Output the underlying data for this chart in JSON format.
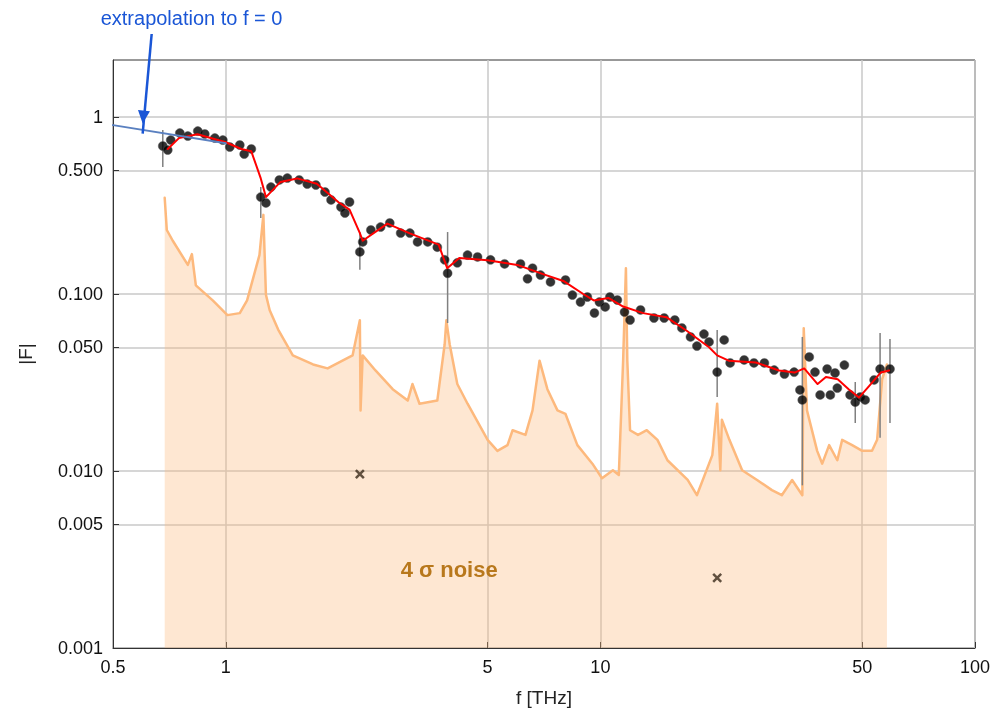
{
  "chart_data": {
    "type": "scatter",
    "xlabel": "f [THz]",
    "ylabel": "|F|",
    "log": "xy",
    "grid": true,
    "xlim": [
      0.5,
      100
    ],
    "xticks": [
      0.5,
      1,
      5,
      10,
      50,
      100
    ],
    "ylim": [
      0.001,
      2.1
    ],
    "yticks": [
      {
        "value": 0.001,
        "label": "0.001"
      },
      {
        "value": 0.005,
        "label": "0.005"
      },
      {
        "value": 0.01,
        "label": "0.010"
      },
      {
        "value": 0.05,
        "label": "0.050"
      },
      {
        "value": 0.1,
        "label": "0.100"
      },
      {
        "value": 0.5,
        "label": "0.500"
      },
      1
    ],
    "annotations": [
      {
        "text": "extrapolation to f = 0",
        "x": 0.6,
        "y": 0.86
      },
      "4 σ noise"
    ],
    "series": [
      {
        "type": "area",
        "color": "#fdb97d",
        "x": [
          0.687,
          0.696,
          0.722,
          0.792,
          0.812,
          0.832,
          0.923,
          1.01,
          1.09,
          1.14,
          1.23,
          1.26,
          1.28,
          1.31,
          1.38,
          1.51,
          1.71,
          1.87,
          2.18,
          2.28,
          2.29,
          2.32,
          2.51,
          2.79,
          3.06,
          3.15,
          3.29,
          3.67,
          3.84,
          3.88,
          3.96,
          4.15,
          4.42,
          5.0,
          5.31,
          5.65,
          5.83,
          6.31,
          6.59,
          6.88,
          7.22,
          7.68,
          8.07,
          8.68,
          9.52,
          10.1,
          10.8,
          11.2,
          11.5,
          11.7,
          11.8,
          12.0,
          12.6,
          13.3,
          14.2,
          15.1,
          17.1,
          18.1,
          19.9,
          20.5,
          20.9,
          21.1,
          22.1,
          23.9,
          26.2,
          28.7,
          30.5,
          32.5,
          34.6,
          34.9,
          35.6,
          37.9,
          39.1,
          40.8,
          42.9,
          44.2,
          47.0,
          50.0,
          53.1,
          54.8,
          56.5,
          58.2
        ],
        "values": [
          0.35,
          0.23,
          0.2,
          0.146,
          0.168,
          0.112,
          0.092,
          0.076,
          0.078,
          0.092,
          0.166,
          0.28,
          0.099,
          0.081,
          0.063,
          0.045,
          0.04,
          0.038,
          0.045,
          0.071,
          0.022,
          0.045,
          0.037,
          0.029,
          0.025,
          0.031,
          0.024,
          0.025,
          0.052,
          0.071,
          0.052,
          0.031,
          0.024,
          0.015,
          0.013,
          0.014,
          0.017,
          0.016,
          0.022,
          0.042,
          0.029,
          0.022,
          0.021,
          0.014,
          0.011,
          0.0091,
          0.0101,
          0.0095,
          0.042,
          0.14,
          0.042,
          0.017,
          0.016,
          0.017,
          0.015,
          0.0115,
          0.0089,
          0.0073,
          0.0123,
          0.024,
          0.0101,
          0.0195,
          0.015,
          0.0101,
          0.0089,
          0.0078,
          0.0073,
          0.0089,
          0.0073,
          0.064,
          0.022,
          0.013,
          0.011,
          0.014,
          0.0115,
          0.015,
          0.014,
          0.013,
          0.013,
          0.015,
          0.033,
          0.04
        ],
        "marker": "none"
      },
      {
        "color": "#000000",
        "marker": "circle",
        "x": [
          0.679,
          0.7,
          0.713,
          0.754,
          0.792,
          0.842,
          0.879,
          0.935,
          0.982,
          1.025,
          1.09,
          1.12,
          1.17,
          1.24,
          1.28,
          1.32,
          1.39,
          1.46,
          1.57,
          1.65,
          1.74,
          1.84,
          1.91,
          2.03,
          2.08,
          2.14,
          2.28,
          2.32,
          2.44,
          2.59,
          2.74,
          2.93,
          3.1,
          3.25,
          3.46,
          3.67,
          3.84,
          3.91,
          4.15,
          4.42,
          4.7,
          5.09,
          5.55,
          6.12,
          6.39,
          6.59,
          6.92,
          7.36,
          8.07,
          8.42,
          8.85,
          9.23,
          9.64,
          9.94,
          10.3,
          10.6,
          11.1,
          11.6,
          12.0,
          12.8,
          13.9,
          14.8,
          15.8,
          16.5,
          17.4,
          18.1,
          18.9,
          19.5,
          20.5,
          21.4,
          22.2,
          24.2,
          25.7,
          27.4,
          29.1,
          31.0,
          32.9,
          34.1,
          34.6,
          36.1,
          37.4,
          38.6,
          40.3,
          41.1,
          42.3,
          42.9,
          44.8,
          46.4,
          47.9,
          49.4,
          50.9,
          53.8,
          55.8,
          59.3
        ],
        "values": [
          0.686,
          0.651,
          0.741,
          0.812,
          0.781,
          0.833,
          0.802,
          0.761,
          0.741,
          0.677,
          0.695,
          0.618,
          0.66,
          0.353,
          0.327,
          0.402,
          0.441,
          0.452,
          0.441,
          0.418,
          0.413,
          0.377,
          0.34,
          0.31,
          0.287,
          0.331,
          0.173,
          0.197,
          0.23,
          0.239,
          0.252,
          0.221,
          0.221,
          0.197,
          0.197,
          0.184,
          0.156,
          0.131,
          0.15,
          0.166,
          0.162,
          0.156,
          0.148,
          0.148,
          0.122,
          0.14,
          0.128,
          0.117,
          0.12,
          0.0987,
          0.0901,
          0.0962,
          0.0781,
          0.0901,
          0.0845,
          0.0962,
          0.0925,
          0.0791,
          0.0713,
          0.0813,
          0.0732,
          0.0732,
          0.0713,
          0.0643,
          0.0572,
          0.0508,
          0.0594,
          0.0536,
          0.0362,
          0.055,
          0.0408,
          0.0424,
          0.0408,
          0.0408,
          0.0372,
          0.0353,
          0.0362,
          0.0287,
          0.0252,
          0.0441,
          0.0362,
          0.0269,
          0.0377,
          0.0269,
          0.0358,
          0.0294,
          0.0397,
          0.0269,
          0.0245,
          0.0262,
          0.0252,
          0.0327,
          0.0377,
          0.0377
        ],
        "errors": [
          [
            0.522,
            0.845
          ],
          null,
          null,
          null,
          null,
          null,
          null,
          null,
          null,
          null,
          null,
          null,
          null,
          [
            0.269,
            0.402
          ],
          null,
          null,
          null,
          null,
          null,
          null,
          null,
          null,
          null,
          null,
          null,
          null,
          [
            0.137,
            0.224
          ],
          null,
          null,
          null,
          null,
          null,
          null,
          null,
          null,
          null,
          null,
          [
            0.0686,
            0.224
          ],
          null,
          null,
          null,
          null,
          null,
          null,
          null,
          null,
          null,
          null,
          null,
          null,
          null,
          null,
          null,
          null,
          null,
          null,
          null,
          null,
          null,
          null,
          null,
          null,
          null,
          null,
          null,
          null,
          null,
          null,
          [
            0.0262,
            0.0626
          ],
          null,
          null,
          null,
          null,
          null,
          null,
          null,
          null,
          null,
          [
            0.0083,
            0.0572
          ],
          null,
          null,
          null,
          null,
          null,
          null,
          null,
          null,
          null,
          [
            0.0187,
            0.0318
          ],
          null,
          null,
          null,
          [
            0.0154,
            0.0603
          ],
          [
            0.0187,
            0.0557
          ]
        ]
      },
      {
        "type": "line",
        "color": "#ff0000",
        "marker": "none",
        "x": [
          0.7,
          0.75,
          0.84,
          1.0,
          1.1,
          1.17,
          1.24,
          1.28,
          1.4,
          1.55,
          1.75,
          2.0,
          2.14,
          2.28,
          2.32,
          2.7,
          3.1,
          3.7,
          3.9,
          4.2,
          5.0,
          6.0,
          7.0,
          8.0,
          9.0,
          9.6,
          10.5,
          11.5,
          13,
          15,
          17,
          19.5,
          20.5,
          22,
          26,
          30,
          33,
          35,
          38,
          40,
          43,
          46,
          49,
          52,
          56,
          59
        ],
        "values": [
          0.66,
          0.76,
          0.8,
          0.72,
          0.66,
          0.64,
          0.45,
          0.353,
          0.43,
          0.45,
          0.42,
          0.33,
          0.3,
          0.221,
          0.2,
          0.25,
          0.22,
          0.19,
          0.14,
          0.16,
          0.155,
          0.146,
          0.13,
          0.118,
          0.1,
          0.092,
          0.095,
          0.085,
          0.078,
          0.074,
          0.062,
          0.05,
          0.045,
          0.042,
          0.041,
          0.037,
          0.036,
          0.038,
          0.031,
          0.034,
          0.033,
          0.029,
          0.026,
          0.03,
          0.036,
          0.037
        ]
      },
      {
        "type": "line",
        "color": "#5a80c0",
        "marker": "none",
        "x": [
          0.5,
          1.0
        ],
        "values": [
          0.9,
          0.71
        ]
      },
      {
        "type": "scatter",
        "color": "#3a2a1a",
        "marker": "cross",
        "x": [
          2.28,
          20.5
        ],
        "values": [
          0.0096,
          0.00249
        ]
      }
    ]
  }
}
